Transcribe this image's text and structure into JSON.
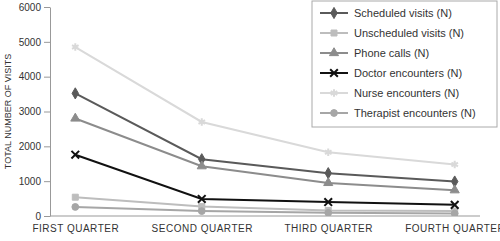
{
  "chart_data": {
    "type": "line",
    "y_label": "TOTAL NUMBER OF VISITS",
    "categories": [
      "FIRST QUARTER",
      "SECOND QUARTER",
      "THIRD QUARTER",
      "FOURTH QUARTER"
    ],
    "series": [
      {
        "name": "Scheduled visits (N)",
        "color": "#5a5a5a",
        "marker": "diamond",
        "values": [
          3520,
          1630,
          1230,
          990
        ]
      },
      {
        "name": "Unscheduled visits (N)",
        "color": "#bdbdbd",
        "marker": "square",
        "values": [
          540,
          270,
          160,
          140
        ]
      },
      {
        "name": "Phone calls (N)",
        "color": "#8c8c8c",
        "marker": "triangle",
        "values": [
          2800,
          1430,
          950,
          740
        ]
      },
      {
        "name": "Doctor encounters (N)",
        "color": "#111111",
        "marker": "x",
        "values": [
          1760,
          490,
          400,
          320
        ]
      },
      {
        "name": "Nurse encounters (N)",
        "color": "#d9d9d9",
        "marker": "asterisk",
        "values": [
          4850,
          2700,
          1830,
          1480
        ]
      },
      {
        "name": "Therapist encounters (N)",
        "color": "#a6a6a6",
        "marker": "circle",
        "values": [
          260,
          140,
          90,
          70
        ]
      }
    ],
    "ylim": [
      0,
      6000
    ],
    "yticks": [
      0,
      1000,
      2000,
      3000,
      4000,
      5000,
      6000
    ],
    "grid": false,
    "legend": "top-right"
  }
}
